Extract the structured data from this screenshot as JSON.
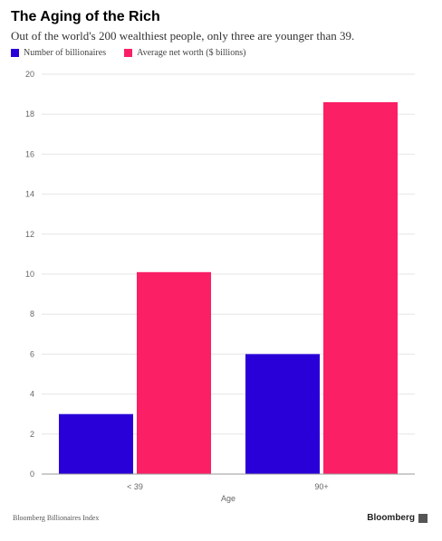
{
  "header": {
    "title": "The Aging of the Rich",
    "subtitle": "Out of the world's 200 wealthiest people, only three are younger than 39."
  },
  "footer": {
    "source": "Bloomberg Billionaires Index",
    "brand": "Bloomberg"
  },
  "chart_data": {
    "type": "bar",
    "categories": [
      "< 39",
      "90+"
    ],
    "series": [
      {
        "name": "Number of billionaires",
        "values": [
          3,
          6
        ],
        "color": "#2a00d8"
      },
      {
        "name": "Average net worth ($ billions)",
        "values": [
          10.1,
          18.6
        ],
        "color": "#fb1f66"
      }
    ],
    "xlabel": "Age",
    "ylabel": "",
    "ylim": [
      0,
      20
    ],
    "yticks": [
      0,
      2,
      4,
      6,
      8,
      10,
      12,
      14,
      16,
      18,
      20
    ],
    "grid": true,
    "legend_position": "top-left"
  }
}
